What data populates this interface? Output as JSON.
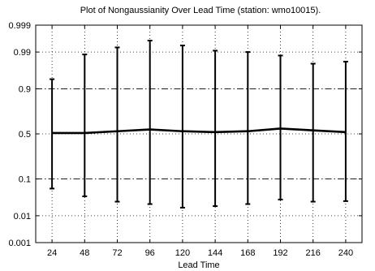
{
  "chart_data": {
    "type": "line",
    "title": "Plot of Nongaussianity Over Lead Time (station: wmo10015).",
    "xlabel": "Lead Time",
    "ylabel": "",
    "y_scale": "probit (normal probability)",
    "x": [
      24,
      48,
      72,
      96,
      120,
      144,
      168,
      192,
      216,
      240
    ],
    "xlim": [
      12,
      252
    ],
    "ylim": [
      0.001,
      0.999
    ],
    "x_ticks": [
      "24",
      "48",
      "72",
      "96",
      "120",
      "144",
      "168",
      "192",
      "216",
      "240"
    ],
    "y_ticks": [
      {
        "value": 0.001,
        "label": "0.001"
      },
      {
        "value": 0.01,
        "label": "0.01"
      },
      {
        "value": 0.1,
        "label": "0.1"
      },
      {
        "value": 0.5,
        "label": "0.5"
      },
      {
        "value": 0.9,
        "label": "0.9"
      },
      {
        "value": 0.99,
        "label": "0.99"
      },
      {
        "value": 0.999,
        "label": "0.999"
      }
    ],
    "series": [
      {
        "values": [
          0.51,
          0.51,
          0.53,
          0.55,
          0.53,
          0.52,
          0.53,
          0.56,
          0.54,
          0.52
        ],
        "upper": [
          0.94,
          0.988,
          0.993,
          0.996,
          0.994,
          0.991,
          0.99,
          0.987,
          0.977,
          0.98
        ],
        "lower": [
          0.06,
          0.038,
          0.027,
          0.023,
          0.018,
          0.02,
          0.023,
          0.031,
          0.027,
          0.028
        ]
      }
    ],
    "grid": {
      "dotted_at": [
        0.01,
        0.5,
        0.99
      ],
      "dashdot_at": [
        0.1,
        0.9
      ],
      "vertical": "dotted"
    },
    "colors": {
      "line": "#000000",
      "grid": "#000000",
      "background": "#ffffff"
    }
  }
}
